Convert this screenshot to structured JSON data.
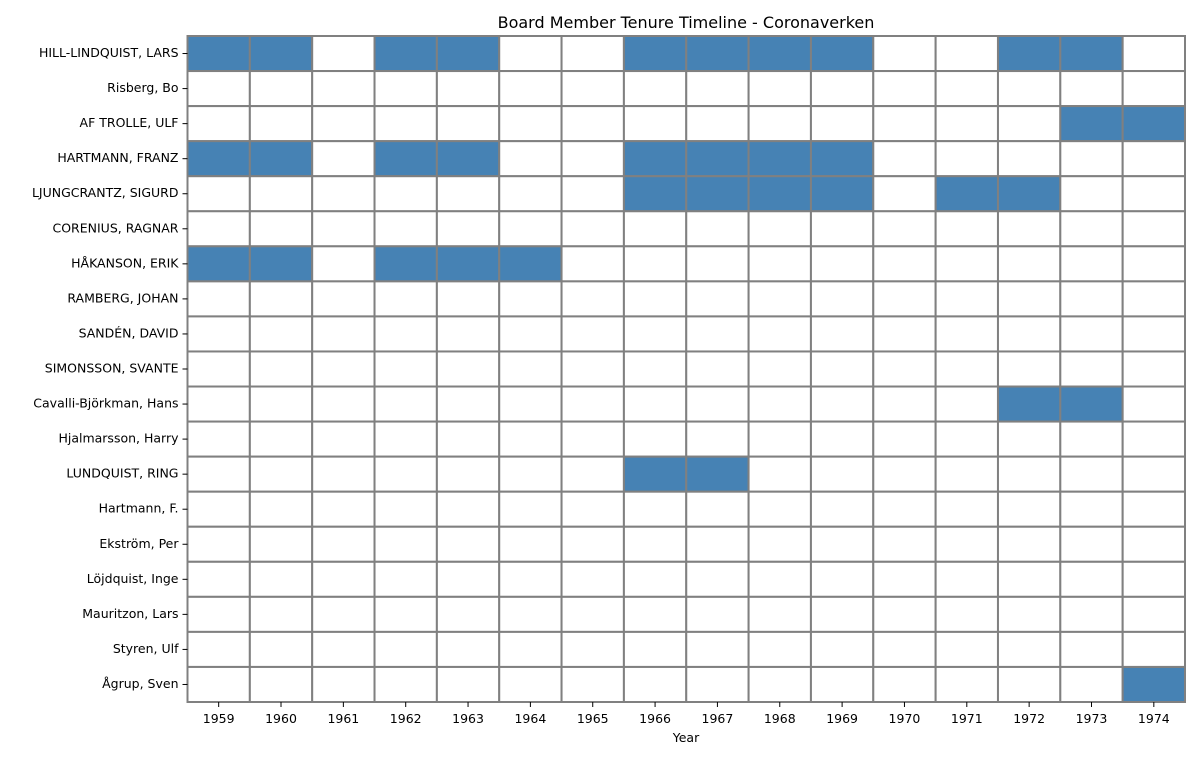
{
  "chart_data": {
    "type": "heatmap",
    "title": "Board Member Tenure Timeline - Coronaverken",
    "xlabel": "Year",
    "ylabel": "",
    "years": [
      1959,
      1960,
      1961,
      1962,
      1963,
      1964,
      1965,
      1966,
      1967,
      1968,
      1969,
      1970,
      1971,
      1972,
      1973,
      1974
    ],
    "members": [
      "HILL-LINDQUIST, LARS",
      "Risberg, Bo",
      "AF TROLLE, ULF",
      "HARTMANN, FRANZ",
      "LJUNGCRANTZ, SIGURD",
      "CORENIUS, RAGNAR",
      "HÅKANSON, ERIK",
      "RAMBERG, JOHAN",
      "SANDÉN, DAVID",
      "SIMONSSON, SVANTE",
      "Cavalli-Björkman, Hans",
      "Hjalmarsson, Harry",
      "LUNDQUIST, RING",
      "Hartmann, F.",
      "Ekström, Per",
      "Löjdquist, Inge",
      "Mauritzon, Lars",
      "Styren, Ulf",
      "Ågrup, Sven"
    ],
    "tenure": [
      [
        1,
        1,
        0,
        1,
        1,
        0,
        0,
        1,
        1,
        1,
        1,
        0,
        0,
        1,
        1,
        0
      ],
      [
        0,
        0,
        0,
        0,
        0,
        0,
        0,
        0,
        0,
        0,
        0,
        0,
        0,
        0,
        0,
        0
      ],
      [
        0,
        0,
        0,
        0,
        0,
        0,
        0,
        0,
        0,
        0,
        0,
        0,
        0,
        0,
        1,
        1
      ],
      [
        1,
        1,
        0,
        1,
        1,
        0,
        0,
        1,
        1,
        1,
        1,
        0,
        0,
        0,
        0,
        0
      ],
      [
        0,
        0,
        0,
        0,
        0,
        0,
        0,
        1,
        1,
        1,
        1,
        0,
        1,
        1,
        0,
        0
      ],
      [
        0,
        0,
        0,
        0,
        0,
        0,
        0,
        0,
        0,
        0,
        0,
        0,
        0,
        0,
        0,
        0
      ],
      [
        1,
        1,
        0,
        1,
        1,
        1,
        0,
        0,
        0,
        0,
        0,
        0,
        0,
        0,
        0,
        0
      ],
      [
        0,
        0,
        0,
        0,
        0,
        0,
        0,
        0,
        0,
        0,
        0,
        0,
        0,
        0,
        0,
        0
      ],
      [
        0,
        0,
        0,
        0,
        0,
        0,
        0,
        0,
        0,
        0,
        0,
        0,
        0,
        0,
        0,
        0
      ],
      [
        0,
        0,
        0,
        0,
        0,
        0,
        0,
        0,
        0,
        0,
        0,
        0,
        0,
        0,
        0,
        0
      ],
      [
        0,
        0,
        0,
        0,
        0,
        0,
        0,
        0,
        0,
        0,
        0,
        0,
        0,
        1,
        1,
        0
      ],
      [
        0,
        0,
        0,
        0,
        0,
        0,
        0,
        0,
        0,
        0,
        0,
        0,
        0,
        0,
        0,
        0
      ],
      [
        0,
        0,
        0,
        0,
        0,
        0,
        0,
        1,
        1,
        0,
        0,
        0,
        0,
        0,
        0,
        0
      ],
      [
        0,
        0,
        0,
        0,
        0,
        0,
        0,
        0,
        0,
        0,
        0,
        0,
        0,
        0,
        0,
        0
      ],
      [
        0,
        0,
        0,
        0,
        0,
        0,
        0,
        0,
        0,
        0,
        0,
        0,
        0,
        0,
        0,
        0
      ],
      [
        0,
        0,
        0,
        0,
        0,
        0,
        0,
        0,
        0,
        0,
        0,
        0,
        0,
        0,
        0,
        0
      ],
      [
        0,
        0,
        0,
        0,
        0,
        0,
        0,
        0,
        0,
        0,
        0,
        0,
        0,
        0,
        0,
        0
      ],
      [
        0,
        0,
        0,
        0,
        0,
        0,
        0,
        0,
        0,
        0,
        0,
        0,
        0,
        0,
        0,
        0
      ],
      [
        0,
        0,
        0,
        0,
        0,
        0,
        0,
        0,
        0,
        0,
        0,
        0,
        0,
        0,
        0,
        1
      ]
    ],
    "colors": {
      "active": "#4682b4",
      "inactive": "#ffffff",
      "cell_border": "#808080"
    },
    "grid": true,
    "legend": "none"
  }
}
